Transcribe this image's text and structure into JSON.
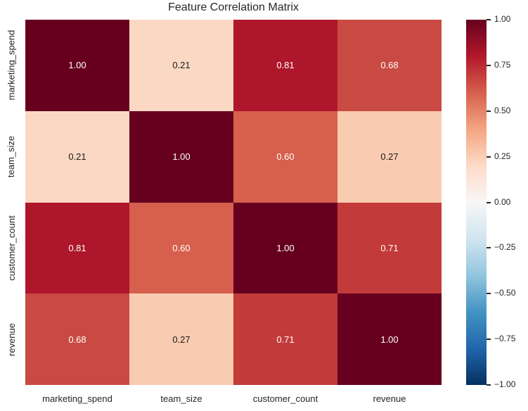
{
  "title": "Feature Correlation Matrix",
  "colors": {
    "background": "#ffffff",
    "axis_text": "#262626",
    "annot_light": "#ffffff",
    "annot_dark": "#1a1a1a"
  },
  "chart_data": {
    "type": "heatmap",
    "title": "Feature Correlation Matrix",
    "colormap": "RdBu_r",
    "vmin": -1.0,
    "vmax": 1.0,
    "categories": [
      "marketing_spend",
      "team_size",
      "customer_count",
      "revenue"
    ],
    "matrix": [
      [
        1.0,
        0.21,
        0.81,
        0.68
      ],
      [
        0.21,
        1.0,
        0.6,
        0.27
      ],
      [
        0.81,
        0.6,
        1.0,
        0.71
      ],
      [
        0.68,
        0.27,
        0.71,
        1.0
      ]
    ],
    "cell_labels": [
      [
        "1.00",
        "0.21",
        "0.81",
        "0.68"
      ],
      [
        "0.21",
        "1.00",
        "0.60",
        "0.27"
      ],
      [
        "0.81",
        "0.60",
        "1.00",
        "0.71"
      ],
      [
        "0.68",
        "0.27",
        "0.71",
        "1.00"
      ]
    ],
    "cell_colors": [
      [
        "#67001f",
        "#fbd8c3",
        "#ae162b",
        "#c94a42"
      ],
      [
        "#fbd8c3",
        "#67001f",
        "#d6604d",
        "#f9ccb1"
      ],
      [
        "#ae162b",
        "#d6604d",
        "#67001f",
        "#c23a3a"
      ],
      [
        "#c94a42",
        "#f9ccb1",
        "#c23a3a",
        "#67001f"
      ]
    ],
    "cell_text_colors": [
      [
        "#ffffff",
        "#1a1a1a",
        "#ffffff",
        "#ffffff"
      ],
      [
        "#1a1a1a",
        "#ffffff",
        "#ffffff",
        "#1a1a1a"
      ],
      [
        "#ffffff",
        "#ffffff",
        "#ffffff",
        "#ffffff"
      ],
      [
        "#ffffff",
        "#1a1a1a",
        "#ffffff",
        "#ffffff"
      ]
    ],
    "legend_position": "right",
    "colorbar": {
      "ticks": [
        "1.00",
        "0.75",
        "0.50",
        "0.25",
        "0.00",
        "−0.25",
        "−0.50",
        "−0.75",
        "−1.00"
      ],
      "gradient_stops_top_to_bottom": [
        "#67001f",
        "#b2182b",
        "#d6604d",
        "#f4a582",
        "#fddbc7",
        "#f7f7f7",
        "#d1e5f0",
        "#92c5de",
        "#4393c3",
        "#2166ac",
        "#053061"
      ]
    }
  }
}
